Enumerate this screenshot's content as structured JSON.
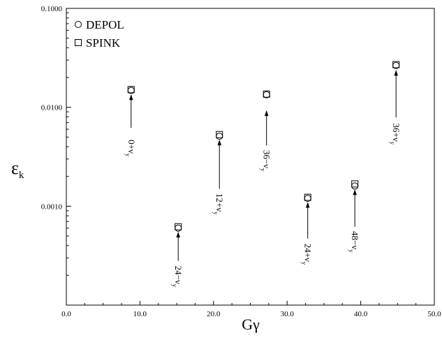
{
  "chart_data": {
    "type": "scatter",
    "xlim": [
      0,
      50
    ],
    "ylim": [
      0.0001,
      0.1
    ],
    "yscale": "log",
    "grid": false,
    "legend_position": "top-left",
    "xticks": [
      "0.0",
      "10.0",
      "20.0",
      "30.0",
      "40.0",
      "50.0"
    ],
    "yticks": [
      "0.0010",
      "0.0100",
      "0.1000"
    ],
    "xlabel": "Gγ",
    "ylabel_main": "ε",
    "ylabel_sub": "k",
    "series": [
      {
        "name": "DEPOL",
        "marker": "circle",
        "x": [
          8.8,
          15.2,
          20.8,
          27.2,
          32.8,
          39.2,
          44.8
        ],
        "y": [
          0.0148,
          0.0006,
          0.0051,
          0.0134,
          0.0012,
          0.0016,
          0.0265
        ]
      },
      {
        "name": "SPINK",
        "marker": "square",
        "x": [
          8.8,
          15.2,
          20.8,
          27.2,
          32.8,
          39.2,
          44.8
        ],
        "y": [
          0.0151,
          0.00062,
          0.0053,
          0.0136,
          0.00123,
          0.00168,
          0.027
        ]
      }
    ],
    "annotations": [
      {
        "base": "0+ν",
        "sub": "y",
        "x": 8.8,
        "arrow_from": 0.0062,
        "arrow_to": 0.0135,
        "text_top": 0.0047
      },
      {
        "base": "24−ν",
        "sub": "y",
        "x": 15.2,
        "arrow_from": 0.00028,
        "arrow_to": 0.00055,
        "text_top": 0.00025
      },
      {
        "base": "12+ν",
        "sub": "y",
        "x": 20.8,
        "arrow_from": 0.0015,
        "arrow_to": 0.0047,
        "text_top": 0.00135
      },
      {
        "base": "36−ν",
        "sub": "y",
        "x": 27.2,
        "arrow_from": 0.0041,
        "arrow_to": 0.0093,
        "text_top": 0.0037
      },
      {
        "base": "24+ν",
        "sub": "y",
        "x": 32.8,
        "arrow_from": 0.00047,
        "arrow_to": 0.0011,
        "text_top": 0.00042
      },
      {
        "base": "48−ν",
        "sub": "y",
        "x": 39.2,
        "arrow_from": 0.00062,
        "arrow_to": 0.00148,
        "text_top": 0.00056
      },
      {
        "base": "36+ν",
        "sub": "y",
        "x": 44.8,
        "arrow_from": 0.0079,
        "arrow_to": 0.0238,
        "text_top": 0.0069
      }
    ]
  }
}
